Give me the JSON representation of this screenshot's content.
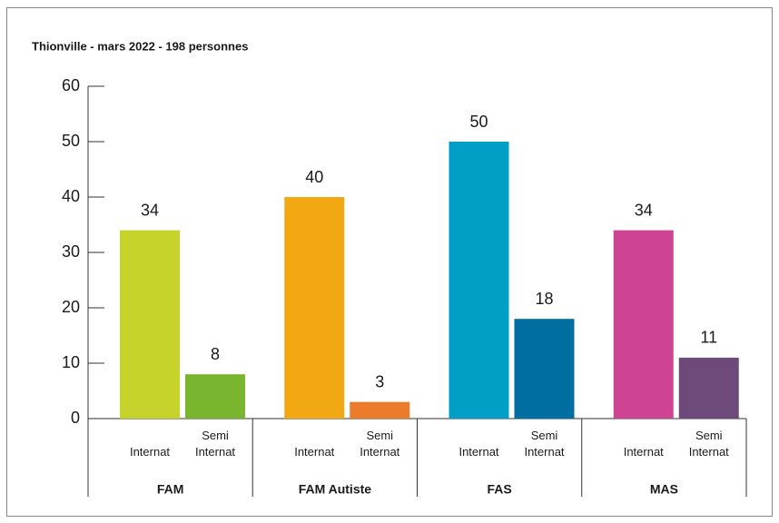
{
  "chart_data": {
    "type": "grouped_bar",
    "title": "Thionville - mars 2022 - 198 personnes",
    "categories": [
      "FAM",
      "FAM Autiste",
      "FAS",
      "MAS"
    ],
    "subcategories": [
      "Internat",
      "Semi Internat"
    ],
    "values": [
      [
        34,
        8
      ],
      [
        40,
        3
      ],
      [
        50,
        18
      ],
      [
        34,
        11
      ]
    ],
    "colors": [
      [
        "#c5d32a",
        "#7ab52f"
      ],
      [
        "#f2a813",
        "#ec7b2b"
      ],
      [
        "#00a0c6",
        "#006ea0"
      ],
      [
        "#cf4492",
        "#6e4a7a"
      ]
    ],
    "ylim": [
      0,
      60
    ],
    "yticks": [
      0,
      10,
      20,
      30,
      40,
      50,
      60
    ]
  }
}
